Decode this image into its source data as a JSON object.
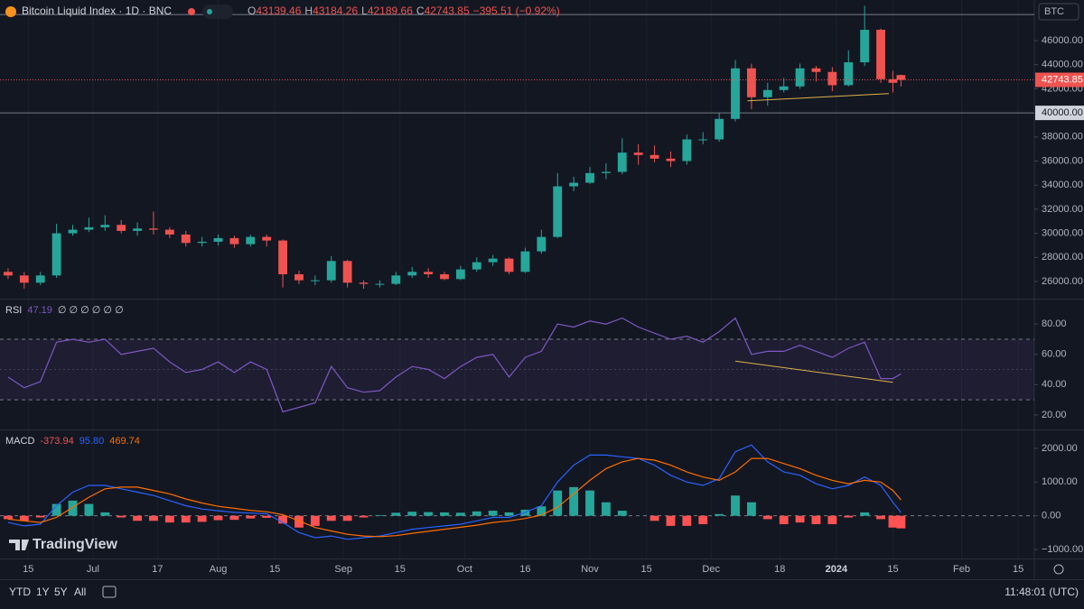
{
  "header": {
    "symbol": "Bitcoin Liquid Index · 1D · BNC",
    "o": "O",
    "h": "H",
    "l": "L",
    "c": "C",
    "change": {
      "value": -395.51,
      "percent": -0.92,
      "label": "−395.51 (−0.92%)"
    }
  },
  "logo": "TradingView",
  "toolbar": {
    "ranges": [
      "YTD",
      "1Y",
      "5Y",
      "All"
    ],
    "clock": "11:48:01 (UTC)"
  },
  "chart_data": [
    {
      "type": "candlestick",
      "currency": "BTC",
      "x": [
        "2023-06-10",
        "2023-06-14",
        "2023-06-18",
        "2023-06-22",
        "2023-06-26",
        "2023-06-30",
        "2023-07-04",
        "2023-07-08",
        "2023-07-12",
        "2023-07-16",
        "2023-07-20",
        "2023-07-24",
        "2023-07-28",
        "2023-08-01",
        "2023-08-05",
        "2023-08-09",
        "2023-08-13",
        "2023-08-17",
        "2023-08-21",
        "2023-08-25",
        "2023-08-29",
        "2023-09-02",
        "2023-09-06",
        "2023-09-10",
        "2023-09-14",
        "2023-09-18",
        "2023-09-22",
        "2023-09-26",
        "2023-09-30",
        "2023-10-04",
        "2023-10-08",
        "2023-10-12",
        "2023-10-16",
        "2023-10-20",
        "2023-10-24",
        "2023-10-28",
        "2023-11-01",
        "2023-11-05",
        "2023-11-09",
        "2023-11-13",
        "2023-11-17",
        "2023-11-21",
        "2023-11-25",
        "2023-11-29",
        "2023-12-03",
        "2023-12-07",
        "2023-12-11",
        "2023-12-15",
        "2023-12-19",
        "2023-12-23",
        "2023-12-27",
        "2023-12-31",
        "2024-01-04",
        "2024-01-08",
        "2024-01-12",
        "2024-01-15",
        "2024-01-17"
      ],
      "open": [
        26800,
        26500,
        25900,
        26500,
        30000,
        30300,
        30500,
        30700,
        30200,
        30400,
        30300,
        29900,
        29200,
        29300,
        29600,
        29100,
        29700,
        29400,
        26600,
        26100,
        26100,
        27700,
        25900,
        25800,
        25800,
        26500,
        26800,
        26600,
        26200,
        27000,
        27600,
        27900,
        26800,
        28500,
        29700,
        33900,
        34200,
        35000,
        35100,
        36700,
        36500,
        36200,
        36000,
        37800,
        37800,
        39500,
        43700,
        41300,
        41900,
        42200,
        43700,
        43400,
        42300,
        44200,
        46900,
        42800,
        43139.46
      ],
      "high": [
        27100,
        26800,
        26800,
        30800,
        30700,
        31300,
        31500,
        31100,
        30900,
        31800,
        30500,
        30200,
        29700,
        29900,
        29800,
        29900,
        29900,
        29500,
        26900,
        26500,
        28100,
        27800,
        26100,
        26100,
        26800,
        27200,
        27100,
        26800,
        27300,
        28000,
        28200,
        28000,
        28800,
        30300,
        35000,
        34700,
        35500,
        35800,
        37900,
        37400,
        37300,
        36800,
        38200,
        38400,
        40000,
        44400,
        44100,
        42500,
        42900,
        44100,
        43900,
        43800,
        45200,
        48900,
        47000,
        43500,
        43184.26
      ],
      "low": [
        26200,
        25400,
        25700,
        26300,
        29800,
        30100,
        30200,
        30000,
        29800,
        29900,
        29600,
        28900,
        28900,
        29000,
        28800,
        28900,
        28900,
        25500,
        25800,
        25700,
        25900,
        25500,
        25400,
        25500,
        25700,
        26300,
        26300,
        26100,
        26100,
        26800,
        27300,
        26600,
        26700,
        28300,
        29600,
        33500,
        34100,
        34500,
        34900,
        35700,
        35900,
        35500,
        35700,
        37400,
        37600,
        39300,
        40300,
        40600,
        41700,
        42000,
        42600,
        41800,
        42200,
        43900,
        42500,
        41700,
        42189.66
      ],
      "close": [
        26500,
        25900,
        26500,
        30000,
        30300,
        30500,
        30700,
        30200,
        30400,
        30300,
        29900,
        29200,
        29300,
        29600,
        29100,
        29700,
        29400,
        26600,
        26100,
        26100,
        27700,
        25900,
        25800,
        25800,
        26500,
        26800,
        26600,
        26200,
        27000,
        27600,
        27900,
        26800,
        28500,
        29700,
        33900,
        34200,
        35000,
        35100,
        36700,
        36500,
        36200,
        36000,
        37800,
        37800,
        39500,
        43700,
        41300,
        41900,
        42200,
        43700,
        43400,
        42300,
        44200,
        46900,
        42800,
        42500,
        42743.85
      ],
      "up_color": "#26a69a",
      "down_color": "#ef5350",
      "xlim": [
        "2023-06-08",
        "2024-02-19"
      ],
      "ylim": [
        24650,
        49000
      ],
      "yticks": [
        {
          "value": 26000,
          "label": "26000.00"
        },
        {
          "value": 28000,
          "label": "28000.00"
        },
        {
          "value": 30000,
          "label": "30000.00"
        },
        {
          "value": 32000,
          "label": "32000.00"
        },
        {
          "value": 34000,
          "label": "34000.00"
        },
        {
          "value": 36000,
          "label": "36000.00"
        },
        {
          "value": 38000,
          "label": "38000.00"
        },
        {
          "value": 42000,
          "label": "42000.00"
        },
        {
          "value": 44000,
          "label": "44000.00"
        },
        {
          "value": 46000,
          "label": "46000.00"
        }
      ],
      "hlines": [
        {
          "value": 40000,
          "label": "40000.00"
        },
        {
          "value": 48170
        }
      ],
      "trendline": {
        "x": [
          "2023-12-10",
          "2024-01-14"
        ],
        "y": [
          41000,
          41600
        ],
        "color": "#e0b04a"
      }
    },
    {
      "type": "rsi",
      "name": "RSI",
      "values": [
        45,
        38,
        42,
        68,
        70,
        68,
        70,
        60,
        62,
        64,
        55,
        48,
        50,
        55,
        48,
        55,
        50,
        22,
        25,
        28,
        52,
        38,
        35,
        36,
        45,
        52,
        50,
        44,
        52,
        58,
        60,
        45,
        58,
        62,
        80,
        78,
        82,
        80,
        84,
        78,
        74,
        70,
        72,
        68,
        75,
        84,
        60,
        62,
        62,
        66,
        62,
        58,
        64,
        68,
        44,
        44,
        47.19
      ],
      "values_label": "∅ ∅ ∅ ∅ ∅ ∅",
      "color": "#7e57c2",
      "ylim": [
        11,
        95
      ],
      "yticks": [
        {
          "value": 20,
          "label": "20.00"
        },
        {
          "value": 40,
          "label": "40.00"
        },
        {
          "value": 60,
          "label": "60.00"
        },
        {
          "value": 80,
          "label": "80.00"
        }
      ],
      "bands": [
        30,
        70
      ],
      "midline": 50,
      "trendline": {
        "x": [
          "2023-12-07",
          "2024-01-15"
        ],
        "y": [
          55.5,
          41.5
        ],
        "color": "#e0b04a"
      }
    },
    {
      "type": "macd",
      "name": "MACD",
      "histogram": {
        "values": [
          -100,
          -150,
          -50,
          350,
          450,
          350,
          100,
          -50,
          -150,
          -150,
          -200,
          -200,
          -180,
          -130,
          -120,
          -80,
          -60,
          -230,
          -350,
          -300,
          -150,
          -150,
          -50,
          20,
          90,
          120,
          110,
          100,
          90,
          130,
          150,
          100,
          180,
          280,
          750,
          850,
          750,
          400,
          150,
          0,
          -150,
          -300,
          -300,
          -250,
          50,
          600,
          400,
          -100,
          -250,
          -200,
          -250,
          -250,
          -50,
          100,
          -100,
          -350,
          -373.94
        ],
        "pos_color": "#26a69a",
        "neg_color": "#ff5252"
      },
      "macd": {
        "values": [
          -200,
          -300,
          -250,
          300,
          700,
          900,
          900,
          800,
          700,
          600,
          450,
          300,
          200,
          150,
          100,
          80,
          60,
          -200,
          -500,
          -650,
          -600,
          -700,
          -650,
          -600,
          -500,
          -400,
          -350,
          -300,
          -250,
          -150,
          -50,
          -50,
          100,
          300,
          1000,
          1500,
          1800,
          1800,
          1750,
          1700,
          1500,
          1200,
          1000,
          900,
          1100,
          1900,
          2100,
          1600,
          1300,
          1200,
          950,
          800,
          900,
          1150,
          900,
          400,
          95.8
        ],
        "last_label": "95.80",
        "color": "#2962ff"
      },
      "signal": {
        "values": [
          -100,
          -150,
          -200,
          -50,
          250,
          550,
          800,
          850,
          850,
          750,
          650,
          500,
          380,
          280,
          220,
          160,
          120,
          30,
          -150,
          -350,
          -450,
          -550,
          -600,
          -620,
          -590,
          -520,
          -460,
          -400,
          -340,
          -280,
          -200,
          -150,
          -80,
          20,
          250,
          650,
          1050,
          1400,
          1600,
          1700,
          1650,
          1500,
          1300,
          1150,
          1050,
          1300,
          1700,
          1700,
          1550,
          1400,
          1200,
          1050,
          950,
          1050,
          1000,
          750,
          469.74
        ],
        "last_label": "469.74",
        "color": "#ff6d00"
      },
      "ylim": [
        -1240,
        2480
      ],
      "yticks": [
        {
          "value": -1000,
          "label": "−1000.00"
        },
        {
          "value": 0,
          "label": "0.00"
        },
        {
          "value": 1000,
          "label": "1000.00"
        },
        {
          "value": 2000,
          "label": "2000.00"
        }
      ],
      "xticks": [
        {
          "value": "2023-06-15",
          "label": "15"
        },
        {
          "value": "2023-07-01",
          "label": "Jul"
        },
        {
          "value": "2023-07-17",
          "label": "17"
        },
        {
          "value": "2023-08-01",
          "label": "Aug"
        },
        {
          "value": "2023-08-15",
          "label": "15"
        },
        {
          "value": "2023-09-01",
          "label": "Sep"
        },
        {
          "value": "2023-09-15",
          "label": "15"
        },
        {
          "value": "2023-10-01",
          "label": "Oct"
        },
        {
          "value": "2023-10-16",
          "label": "16"
        },
        {
          "value": "2023-11-01",
          "label": "Nov"
        },
        {
          "value": "2023-11-15",
          "label": "15"
        },
        {
          "value": "2023-12-01",
          "label": "Dec"
        },
        {
          "value": "2023-12-18",
          "label": "18"
        },
        {
          "value": "2024-01-01",
          "label": "2024"
        },
        {
          "value": "2024-01-15",
          "label": "15"
        },
        {
          "value": "2024-02-01",
          "label": "Feb"
        },
        {
          "value": "2024-02-15",
          "label": "15"
        }
      ],
      "grid": true
    }
  ]
}
